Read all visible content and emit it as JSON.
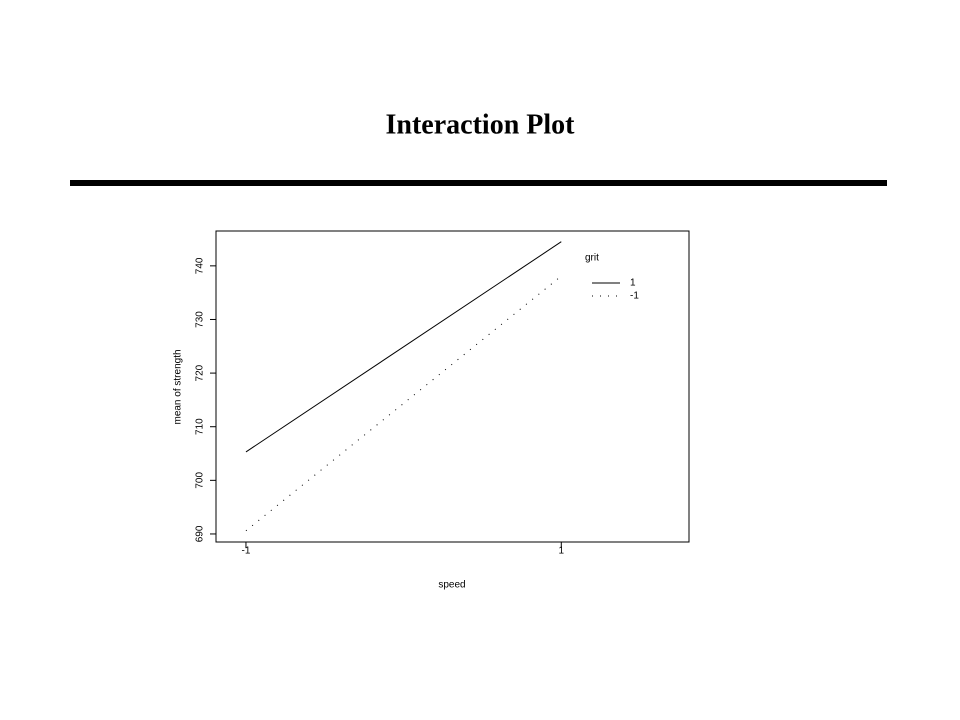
{
  "slide": {
    "title": "Interaction Plot"
  },
  "chart_data": {
    "type": "line",
    "x_label": "speed",
    "y_label": "mean of strength",
    "x": [
      -1,
      1
    ],
    "series": [
      {
        "name": "1",
        "color": "#000000",
        "style": "solid",
        "values": [
          705.3,
          744.5
        ]
      },
      {
        "name": "-1",
        "color": "#000000",
        "style": "dotted",
        "values": [
          690.6,
          738.1
        ]
      }
    ],
    "legend_title": "grit",
    "legend": "upper right",
    "xlim": [
      -1.19,
      1.81
    ],
    "xticks": [
      -1,
      1
    ],
    "ylim": [
      688.5,
      746.5
    ],
    "yticks": [
      690,
      700,
      710,
      720,
      730,
      740
    ]
  }
}
